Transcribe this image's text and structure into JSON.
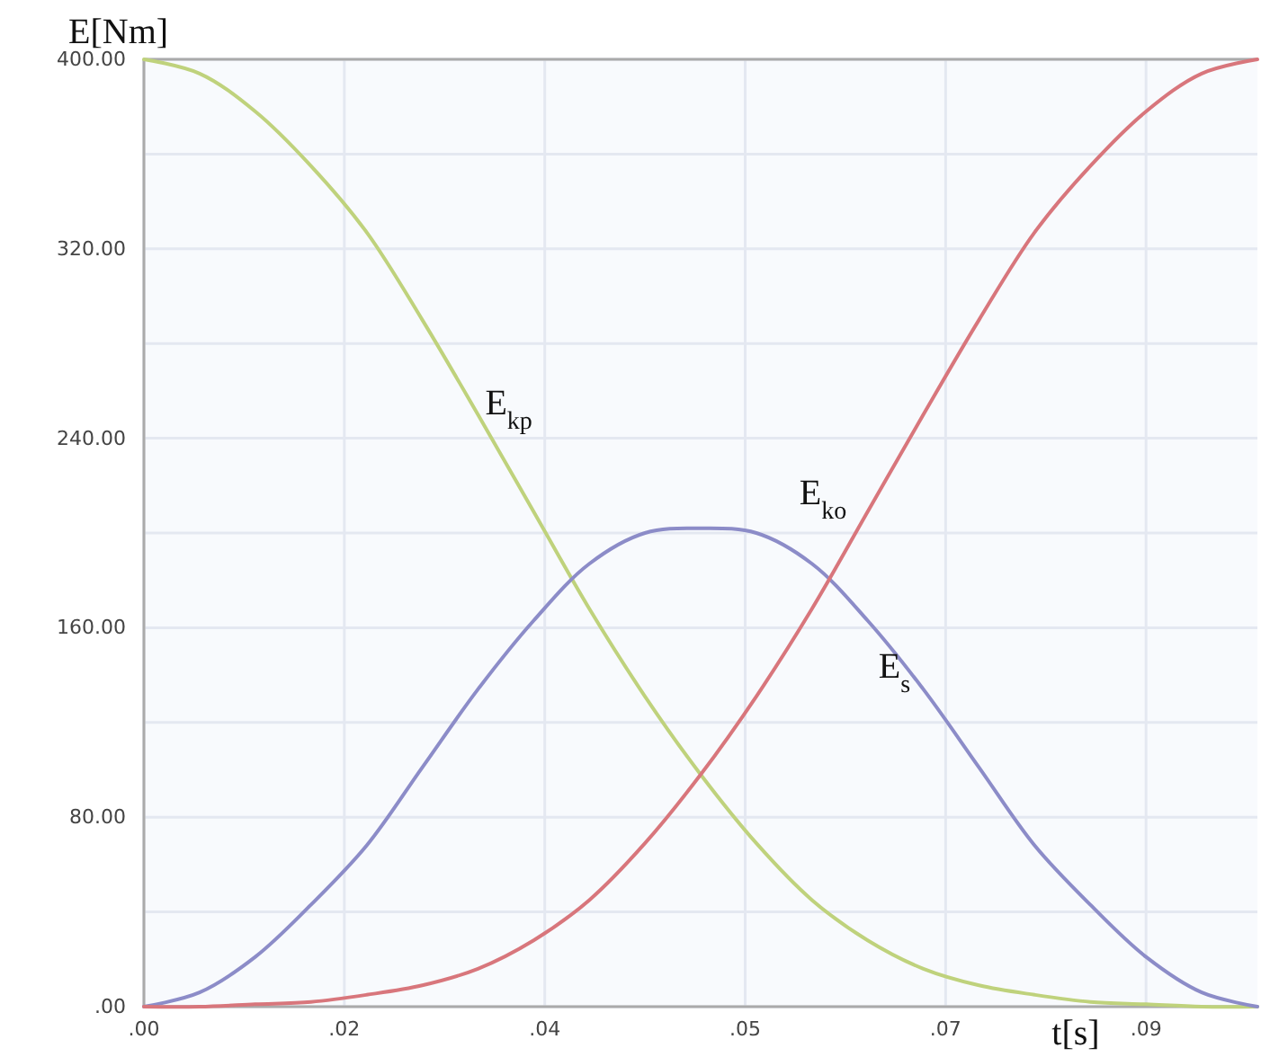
{
  "chart_data": {
    "type": "line",
    "xlabel": "t[s]",
    "ylabel": "E[Nm]",
    "x": [
      0,
      0.005,
      0.01,
      0.015,
      0.02,
      0.025,
      0.03,
      0.035,
      0.04,
      0.045,
      0.05,
      0.055,
      0.06,
      0.065,
      0.07,
      0.075,
      0.08,
      0.085,
      0.09,
      0.095,
      0.1
    ],
    "series": [
      {
        "name": "E$_{kp}$",
        "color": "#bfd27c",
        "values": [
          400,
          394,
          378,
          355,
          327,
          290,
          250,
          209,
          168,
          131,
          98,
          69,
          45,
          28,
          16,
          9,
          5,
          2,
          1,
          0,
          0
        ]
      },
      {
        "name": "E$_{s}$",
        "color": "#8c8cc8",
        "values": [
          0,
          6,
          21,
          43,
          68,
          101,
          134,
          163,
          187,
          200,
          202,
          200,
          187,
          163,
          134,
          101,
          68,
          43,
          21,
          6,
          0
        ]
      },
      {
        "name": "E$_{ko}$",
        "color": "#d8767c",
        "values": [
          0,
          0,
          1,
          2,
          5,
          9,
          16,
          28,
          45,
          69,
          98,
          131,
          168,
          209,
          250,
          290,
          327,
          355,
          378,
          394,
          400
        ]
      }
    ],
    "xlim": [
      0,
      0.1
    ],
    "xticks": [
      {
        "value": 0,
        "label": ".00"
      },
      {
        "value": 0.018,
        "label": ".02"
      },
      {
        "value": 0.036,
        "label": ".04"
      },
      {
        "value": 0.054,
        "label": ".05"
      },
      {
        "value": 0.072,
        "label": ".07"
      },
      {
        "value": 0.09,
        "label": ".09"
      }
    ],
    "ylim": [
      0,
      400
    ],
    "yticks": [
      {
        "value": 0,
        "label": ".00"
      },
      {
        "value": 40,
        "label": null
      },
      {
        "value": 80,
        "label": "80.00"
      },
      {
        "value": 120,
        "label": null
      },
      {
        "value": 160,
        "label": "160.00"
      },
      {
        "value": 200,
        "label": null
      },
      {
        "value": 240,
        "label": "240.00"
      },
      {
        "value": 280,
        "label": null
      },
      {
        "value": 320,
        "label": "320.00"
      },
      {
        "value": 360,
        "label": null
      },
      {
        "value": 400,
        "label": "400.00"
      }
    ],
    "grid": true
  }
}
